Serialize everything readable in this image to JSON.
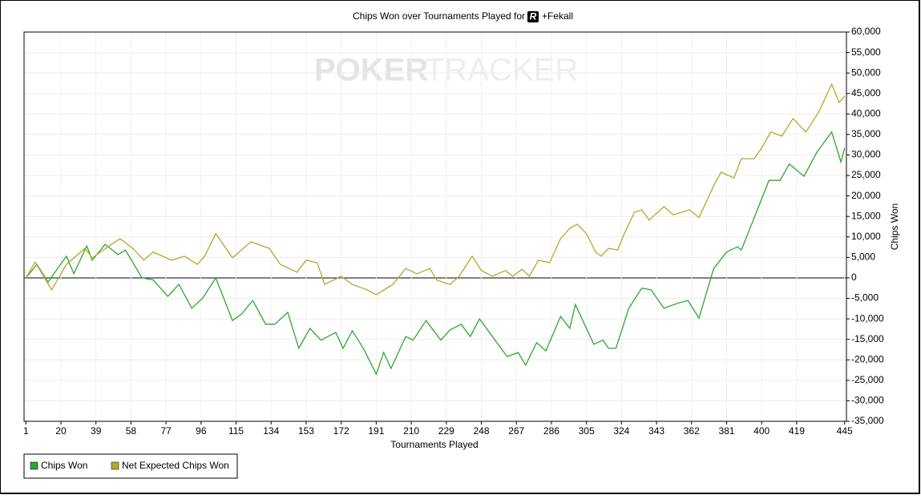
{
  "chart_data": {
    "type": "line",
    "title": "Chips Won over Tournaments Played for",
    "title_badge": "R",
    "title_suffix": "+Fekall",
    "watermark": [
      "POKER",
      "TRACKER"
    ],
    "x_label": "Tournaments Played",
    "y_label": "Chips Won",
    "xlim": [
      0,
      446
    ],
    "ylim": [
      -35000,
      60000
    ],
    "xticks": [
      1,
      20,
      39,
      58,
      77,
      96,
      115,
      134,
      153,
      172,
      191,
      210,
      229,
      248,
      267,
      286,
      305,
      324,
      343,
      362,
      381,
      400,
      419,
      445
    ],
    "yticks": [
      {
        "value": -35000,
        "label": "-35,000"
      },
      {
        "value": -30000,
        "label": "-30,000"
      },
      {
        "value": -25000,
        "label": "-25,000"
      },
      {
        "value": -20000,
        "label": "-20,000"
      },
      {
        "value": -15000,
        "label": "-15,000"
      },
      {
        "value": -10000,
        "label": "-10,000"
      },
      {
        "value": -5000,
        "label": "-5,000"
      },
      0,
      {
        "value": 5000,
        "label": "5,000"
      },
      {
        "value": 10000,
        "label": "10,000"
      },
      {
        "value": 15000,
        "label": "15,000"
      },
      {
        "value": 20000,
        "label": "20,000"
      },
      {
        "value": 25000,
        "label": "25,000"
      },
      {
        "value": 30000,
        "label": "30,000"
      },
      {
        "value": 35000,
        "label": "35,000"
      },
      {
        "value": 40000,
        "label": "40,000"
      },
      {
        "value": 45000,
        "label": "45,000"
      },
      {
        "value": 50000,
        "label": "50,000"
      },
      {
        "value": 55000,
        "label": "55,000"
      },
      {
        "value": 60000,
        "label": "60,000"
      }
    ],
    "grid": true,
    "legend": "bottom-left",
    "series": [
      {
        "name": "Chips Won",
        "color": "#2ca82c",
        "x": [
          1,
          7,
          13,
          23,
          27,
          34,
          37,
          44,
          51,
          55,
          64,
          70,
          78,
          84,
          91,
          97,
          104,
          113,
          118,
          124,
          131,
          136,
          143,
          149,
          155,
          161,
          169,
          173,
          178,
          184,
          191,
          195,
          199,
          207,
          211,
          218,
          226,
          231,
          237,
          242,
          247,
          254,
          262,
          268,
          272,
          278,
          283,
          291,
          296,
          299,
          309,
          314,
          317,
          321,
          328,
          335,
          340,
          347,
          355,
          360,
          366,
          374,
          381,
          387,
          389,
          404,
          410,
          415,
          423,
          430,
          438,
          443,
          445
        ],
        "values": [
          0,
          3300,
          -1000,
          5300,
          1000,
          7800,
          4300,
          8200,
          5700,
          6800,
          0,
          -500,
          -4500,
          -1600,
          -7400,
          -4900,
          0,
          -10400,
          -8800,
          -5500,
          -11300,
          -11300,
          -8400,
          -17200,
          -12300,
          -15200,
          -13300,
          -17200,
          -12900,
          -17200,
          -23500,
          -18200,
          -22100,
          -14300,
          -15200,
          -10400,
          -15200,
          -12700,
          -11300,
          -14300,
          -10000,
          -14300,
          -19200,
          -18200,
          -21300,
          -15800,
          -17800,
          -9400,
          -12300,
          -6500,
          -16200,
          -15200,
          -17200,
          -17200,
          -7400,
          -2500,
          -2900,
          -7400,
          -6100,
          -5500,
          -9800,
          2300,
          6300,
          7600,
          6800,
          23800,
          23800,
          27800,
          24800,
          30700,
          35600,
          28300,
          31700
        ]
      },
      {
        "name": "Net Expected Chips Won",
        "color": "#b5a82c",
        "x": [
          1,
          6,
          15,
          23,
          33,
          37,
          52,
          59,
          65,
          70,
          80,
          87,
          94,
          98,
          104,
          113,
          123,
          133,
          139,
          148,
          153,
          159,
          163,
          172,
          178,
          186,
          191,
          200,
          207,
          213,
          220,
          224,
          231,
          236,
          243,
          248,
          254,
          261,
          265,
          270,
          274,
          279,
          285,
          291,
          296,
          300,
          305,
          310,
          313,
          317,
          322,
          325,
          331,
          335,
          339,
          347,
          352,
          361,
          366,
          374,
          378,
          385,
          389,
          396,
          400,
          405,
          411,
          417,
          424,
          431,
          438,
          442,
          445
        ],
        "values": [
          0,
          3900,
          -2900,
          3300,
          7200,
          4900,
          9600,
          7200,
          4300,
          6300,
          4300,
          5300,
          3300,
          5300,
          10800,
          4900,
          8800,
          7200,
          3300,
          1400,
          4300,
          3700,
          -1600,
          400,
          -1600,
          -2900,
          -4100,
          -1600,
          2300,
          1000,
          2300,
          -600,
          -1600,
          400,
          5300,
          1800,
          400,
          1800,
          400,
          2100,
          400,
          4300,
          3700,
          9600,
          12100,
          13100,
          10800,
          6300,
          5300,
          7200,
          6800,
          10200,
          16000,
          16600,
          14100,
          17400,
          15400,
          16600,
          14700,
          22500,
          25800,
          24400,
          29100,
          29100,
          31700,
          35600,
          34600,
          38900,
          35600,
          40500,
          47300,
          42800,
          44400
        ]
      }
    ]
  }
}
